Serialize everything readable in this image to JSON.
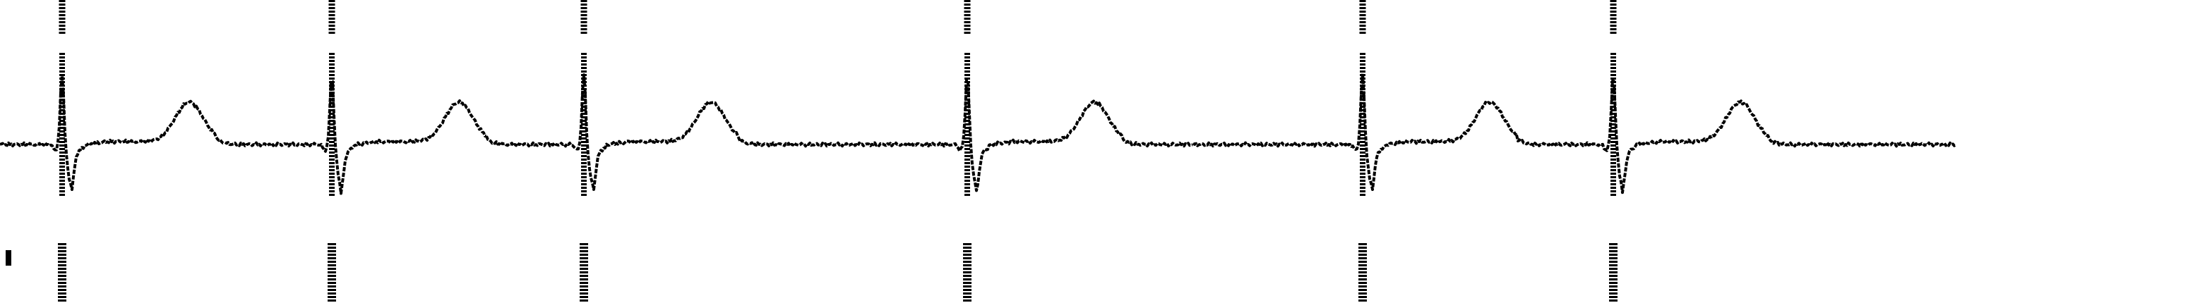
{
  "chart_data": {
    "type": "line",
    "title": "",
    "xlabel": "",
    "ylabel": "",
    "grid": false,
    "legend": "none",
    "trace_color": "#000000",
    "background_color": "#ffffff",
    "beats": [
      {
        "index": 1,
        "r_peak_sample": 88
      },
      {
        "index": 2,
        "r_peak_sample": 470
      },
      {
        "index": 3,
        "r_peak_sample": 827
      },
      {
        "index": 4,
        "r_peak_sample": 1370
      },
      {
        "index": 5,
        "r_peak_sample": 1930
      },
      {
        "index": 6,
        "r_peak_sample": 2285
      }
    ],
    "beat_waveform": {
      "baseline": 0,
      "r_peak": 1.0,
      "s_trough": -0.55,
      "t_wave": 0.56,
      "t_offset_samples": 180,
      "st_level": 0.04
    },
    "pacing_spikes": {
      "upper_row": true,
      "lower_row": true
    },
    "trace_range_samples": [
      0,
      2770
    ],
    "ylim": [
      -1.2,
      1.6
    ]
  }
}
